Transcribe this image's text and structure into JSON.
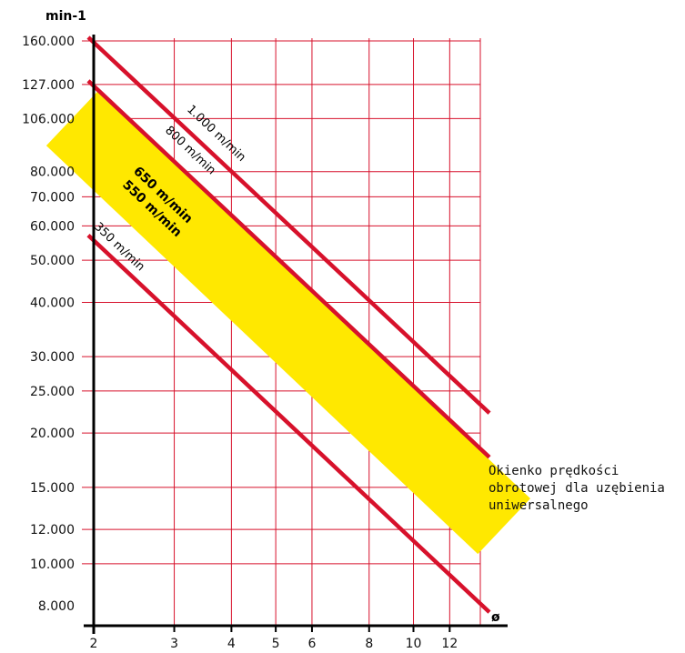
{
  "chart_data": {
    "type": "line",
    "title": "",
    "ylabel": "min-1",
    "xlabel": "ø",
    "x_ticks": [
      2,
      3,
      4,
      5,
      6,
      8,
      10,
      12
    ],
    "y_ticks": [
      {
        "value": 160000,
        "label": "160.000"
      },
      {
        "value": 127000,
        "label": "127.000"
      },
      {
        "value": 106000,
        "label": "106.000"
      },
      {
        "value": 80000,
        "label": "80.000"
      },
      {
        "value": 70000,
        "label": "70.000"
      },
      {
        "value": 60000,
        "label": "60.000"
      },
      {
        "value": 50000,
        "label": "50.000"
      },
      {
        "value": 40000,
        "label": "40.000"
      },
      {
        "value": 30000,
        "label": "30.000"
      },
      {
        "value": 25000,
        "label": "25.000"
      },
      {
        "value": 20000,
        "label": "20.000"
      },
      {
        "value": 15000,
        "label": "15.000"
      },
      {
        "value": 12000,
        "label": "12.000"
      },
      {
        "value": 10000,
        "label": "10.000"
      },
      {
        "value": 8000,
        "label": "8.000"
      }
    ],
    "series": [
      {
        "name": "1.000 m/min",
        "x": [
          2,
          14
        ],
        "y": [
          160000,
          23000
        ]
      },
      {
        "name": "800 m/min",
        "x": [
          2,
          14
        ],
        "y": [
          127000,
          18200
        ]
      },
      {
        "name": "350 m/min",
        "x": [
          2,
          14
        ],
        "y": [
          56000,
          8000
        ]
      }
    ],
    "band": {
      "labels": [
        "650 m/min",
        "550 m/min"
      ],
      "x": [
        2,
        14
      ],
      "y_upper": [
        104000,
        15000
      ],
      "y_lower": [
        88000,
        12600
      ]
    },
    "annotation": [
      "Okienko prędkości",
      "obrotowej dla uzębienia",
      "uniwersalnego"
    ],
    "colors": {
      "grid": "#d7112b",
      "line": "#d7112b",
      "band": "#ffe800",
      "axis": "#000000"
    }
  }
}
